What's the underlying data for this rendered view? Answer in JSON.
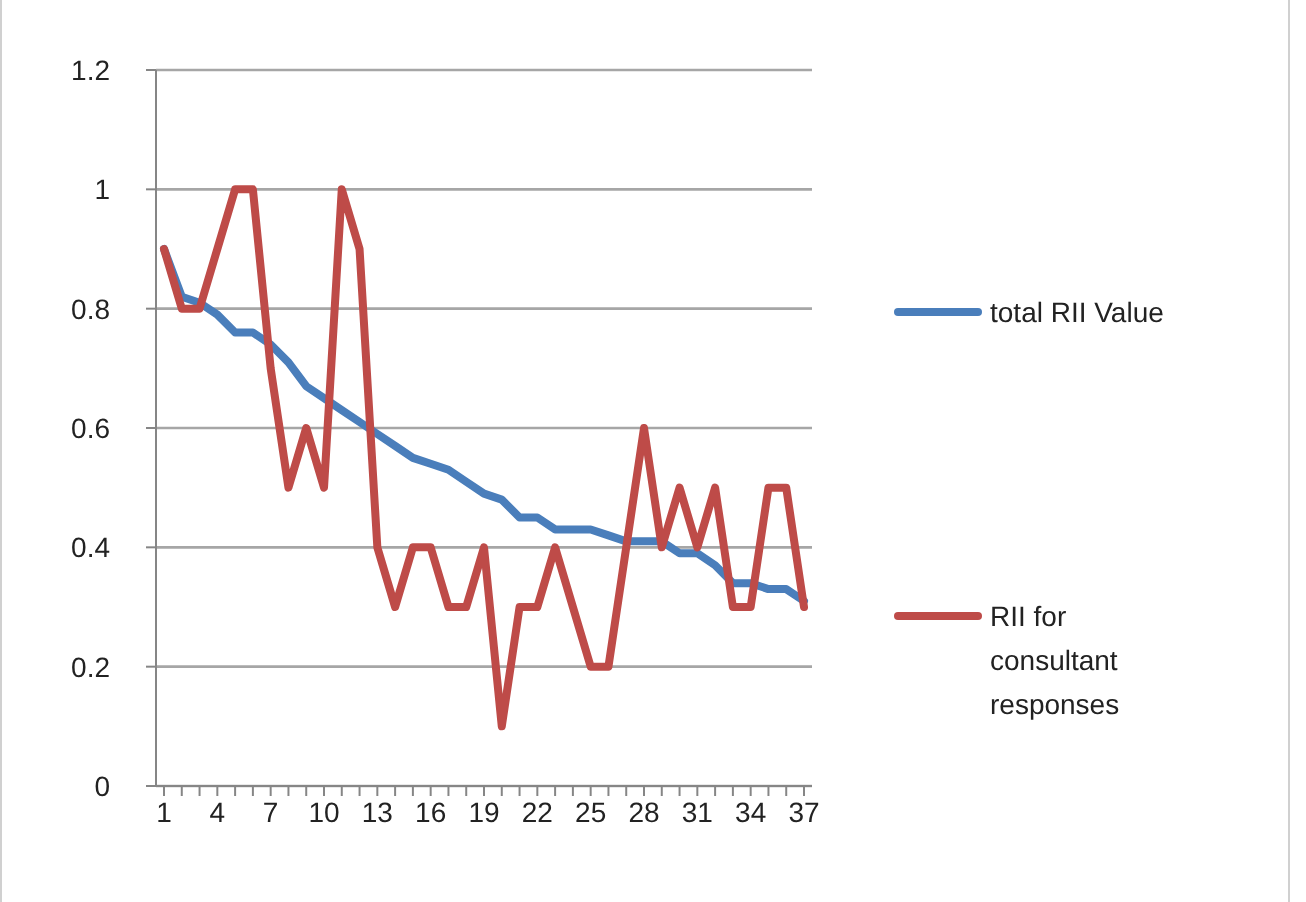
{
  "chart_data": {
    "type": "line",
    "categories": [
      "1",
      null,
      null,
      "4",
      null,
      null,
      "7",
      null,
      null,
      "10",
      null,
      null,
      "13",
      null,
      null,
      "16",
      null,
      null,
      "19",
      null,
      null,
      "22",
      null,
      null,
      "25",
      null,
      null,
      "28",
      null,
      null,
      "31",
      null,
      null,
      "34",
      null,
      null,
      "37"
    ],
    "ylim": [
      0,
      1.2
    ],
    "yticks": [
      0,
      0.2,
      0.4,
      0.6,
      0.8,
      1,
      1.2
    ],
    "grid": "y",
    "legend": "right",
    "marker": "none",
    "series": [
      {
        "name": "total RII Value",
        "color": "#4a7ebb",
        "values": [
          0.9,
          0.82,
          0.81,
          0.79,
          0.76,
          0.76,
          0.74,
          0.71,
          0.67,
          0.65,
          0.63,
          0.61,
          0.59,
          0.57,
          0.55,
          0.54,
          0.53,
          0.51,
          0.49,
          0.48,
          0.45,
          0.45,
          0.43,
          0.43,
          0.43,
          0.42,
          0.41,
          0.41,
          0.41,
          0.39,
          0.39,
          0.37,
          0.34,
          0.34,
          0.33,
          0.33,
          0.31
        ]
      },
      {
        "name": "RII for consultant responses",
        "color": "#be4b48",
        "values": [
          0.9,
          0.8,
          0.8,
          0.9,
          1,
          1,
          0.7,
          0.5,
          0.6,
          0.5,
          1,
          0.9,
          0.4,
          0.3,
          0.4,
          0.4,
          0.3,
          0.3,
          0.4,
          0.1,
          0.3,
          0.3,
          0.4,
          0.3,
          0.2,
          0.2,
          0.4,
          0.6,
          0.4,
          0.5,
          0.4,
          0.5,
          0.3,
          0.3,
          0.5,
          0.5,
          0.3
        ]
      }
    ]
  }
}
